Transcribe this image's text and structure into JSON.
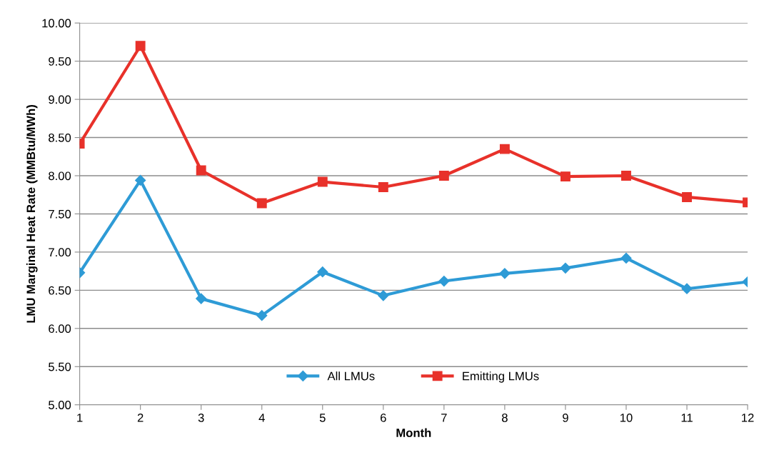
{
  "chart_data": {
    "type": "line",
    "xlabel": "Month",
    "ylabel": "LMU Marginal Heat Rate (MMBtu/MWh)",
    "x": [
      1,
      2,
      3,
      4,
      5,
      6,
      7,
      8,
      9,
      10,
      11,
      12
    ],
    "series": [
      {
        "name": "All LMUs",
        "color": "#2e9bd6",
        "marker": "diamond",
        "values": [
          6.73,
          7.94,
          6.39,
          6.17,
          6.74,
          6.43,
          6.62,
          6.72,
          6.79,
          6.92,
          6.52,
          6.61
        ]
      },
      {
        "name": "Emitting LMUs",
        "color": "#e8312a",
        "marker": "square",
        "values": [
          8.42,
          9.7,
          8.07,
          7.64,
          7.92,
          7.85,
          8.0,
          8.35,
          7.99,
          8.0,
          7.72,
          7.65
        ]
      }
    ],
    "xlim": [
      1,
      12
    ],
    "xticks": [
      1,
      2,
      3,
      4,
      5,
      6,
      7,
      8,
      9,
      10,
      11,
      12
    ],
    "ylim": [
      5,
      10
    ],
    "yticks": [
      {
        "value": 5,
        "label": "5.00"
      },
      {
        "value": 5.5,
        "label": "5.50"
      },
      {
        "value": 6,
        "label": "6.00"
      },
      {
        "value": 6.5,
        "label": "6.50"
      },
      {
        "value": 7,
        "label": "7.00"
      },
      {
        "value": 7.5,
        "label": "7.50"
      },
      {
        "value": 8,
        "label": "8.00"
      },
      {
        "value": 8.5,
        "label": "8.50"
      },
      {
        "value": 9,
        "label": "9.00"
      },
      {
        "value": 9.5,
        "label": "9.50"
      },
      {
        "value": 10,
        "label": "10.00"
      }
    ],
    "grid": "y",
    "legend": "bottom",
    "line_style": "solid"
  }
}
